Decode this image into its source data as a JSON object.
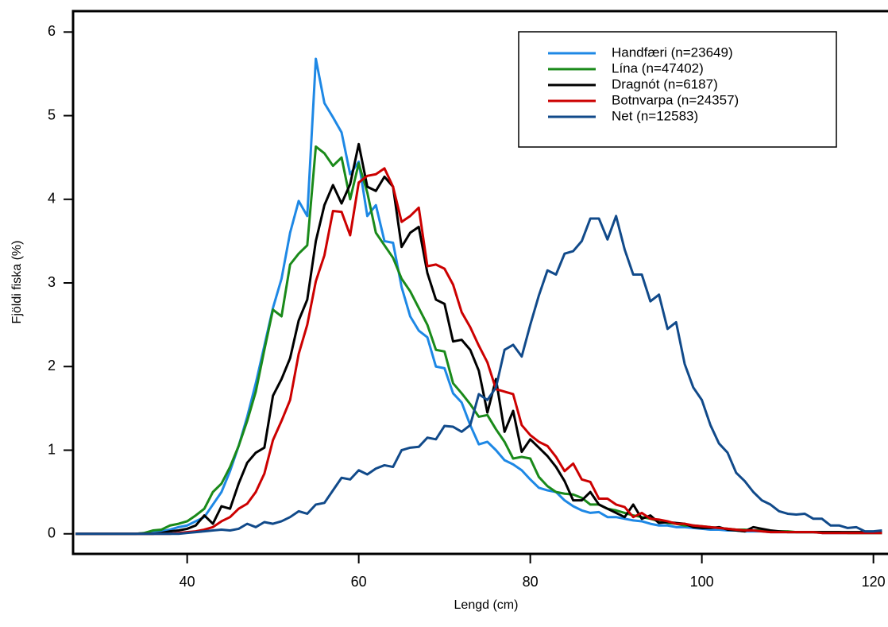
{
  "chart_data": {
    "type": "line",
    "xlabel": "Lengd (cm)",
    "ylabel": "Fjöldi fiska (%)",
    "xlim": [
      26.7,
      121.7
    ],
    "ylim": [
      -0.24,
      6.25
    ],
    "xticks": [
      40,
      60,
      80,
      100,
      120
    ],
    "yticks": [
      0,
      1,
      2,
      3,
      4,
      5,
      6
    ],
    "legend": "topright",
    "grid": false,
    "x": [
      27,
      28,
      29,
      30,
      31,
      32,
      33,
      34,
      35,
      36,
      37,
      38,
      39,
      40,
      41,
      42,
      43,
      44,
      45,
      46,
      47,
      48,
      49,
      50,
      51,
      52,
      53,
      54,
      55,
      56,
      57,
      58,
      59,
      60,
      61,
      62,
      63,
      64,
      65,
      66,
      67,
      68,
      69,
      70,
      71,
      72,
      73,
      74,
      75,
      76,
      77,
      78,
      79,
      80,
      81,
      82,
      83,
      84,
      85,
      86,
      87,
      88,
      89,
      90,
      91,
      92,
      93,
      94,
      95,
      96,
      97,
      98,
      99,
      100,
      101,
      102,
      103,
      104,
      105,
      106,
      107,
      108,
      109,
      110,
      111,
      112,
      113,
      114,
      115,
      116,
      117,
      118,
      119,
      120,
      121
    ],
    "series": [
      {
        "name": "Handfæri (n=23649)",
        "color": "#1E88E5",
        "values": [
          0,
          0,
          0,
          0,
          0,
          0,
          0,
          0,
          0.01,
          0.02,
          0.03,
          0.05,
          0.08,
          0.1,
          0.15,
          0.2,
          0.35,
          0.5,
          0.75,
          1.05,
          1.4,
          1.8,
          2.25,
          2.7,
          3.05,
          3.6,
          3.98,
          3.8,
          5.68,
          5.15,
          4.98,
          4.8,
          4.3,
          4.45,
          3.8,
          3.93,
          3.5,
          3.48,
          2.95,
          2.6,
          2.43,
          2.35,
          2.0,
          1.98,
          1.68,
          1.57,
          1.3,
          1.07,
          1.1,
          1.0,
          0.88,
          0.83,
          0.76,
          0.65,
          0.55,
          0.52,
          0.5,
          0.4,
          0.33,
          0.28,
          0.25,
          0.26,
          0.2,
          0.2,
          0.18,
          0.16,
          0.15,
          0.12,
          0.1,
          0.1,
          0.08,
          0.08,
          0.07,
          0.06,
          0.05,
          0.05,
          0.04,
          0.04,
          0.03,
          0.03,
          0.03,
          0.02,
          0.02,
          0.02,
          0.02,
          0.02,
          0.02,
          0.01,
          0.01,
          0.01,
          0.01,
          0.01,
          0.01,
          0.01,
          0.01
        ]
      },
      {
        "name": "Lína (n=47402)",
        "color": "#1A8A1A",
        "values": [
          0,
          0,
          0,
          0,
          0,
          0,
          0,
          0,
          0.01,
          0.04,
          0.05,
          0.1,
          0.12,
          0.15,
          0.22,
          0.3,
          0.5,
          0.6,
          0.8,
          1.05,
          1.35,
          1.7,
          2.2,
          2.68,
          2.6,
          3.22,
          3.35,
          3.45,
          4.63,
          4.55,
          4.4,
          4.5,
          4.0,
          4.43,
          4.08,
          3.6,
          3.45,
          3.3,
          3.05,
          2.9,
          2.7,
          2.5,
          2.2,
          2.18,
          1.8,
          1.68,
          1.55,
          1.4,
          1.42,
          1.25,
          1.1,
          0.9,
          0.92,
          0.9,
          0.68,
          0.57,
          0.5,
          0.48,
          0.47,
          0.43,
          0.35,
          0.35,
          0.3,
          0.28,
          0.25,
          0.22,
          0.2,
          0.18,
          0.15,
          0.13,
          0.12,
          0.1,
          0.1,
          0.09,
          0.08,
          0.07,
          0.06,
          0.05,
          0.05,
          0.04,
          0.04,
          0.03,
          0.03,
          0.03,
          0.02,
          0.02,
          0.02,
          0.02,
          0.02,
          0.02,
          0.01,
          0.01,
          0.01,
          0.01,
          0.01
        ]
      },
      {
        "name": "Dragnót (n=6187)",
        "color": "#000000",
        "values": [
          0,
          0,
          0,
          0,
          0,
          0,
          0,
          0,
          0,
          0,
          0.01,
          0.03,
          0.04,
          0.06,
          0.1,
          0.22,
          0.12,
          0.33,
          0.3,
          0.6,
          0.85,
          0.97,
          1.03,
          1.65,
          1.85,
          2.1,
          2.55,
          2.8,
          3.5,
          3.93,
          4.17,
          3.95,
          4.18,
          4.66,
          4.15,
          4.1,
          4.27,
          4.15,
          3.43,
          3.6,
          3.67,
          3.12,
          2.8,
          2.75,
          2.3,
          2.32,
          2.2,
          1.95,
          1.45,
          1.85,
          1.22,
          1.47,
          0.98,
          1.13,
          1.03,
          0.93,
          0.8,
          0.63,
          0.4,
          0.4,
          0.5,
          0.35,
          0.3,
          0.25,
          0.2,
          0.35,
          0.18,
          0.22,
          0.13,
          0.14,
          0.13,
          0.12,
          0.08,
          0.07,
          0.07,
          0.08,
          0.05,
          0.04,
          0.03,
          0.08,
          0.06,
          0.04,
          0.03,
          0.02,
          0.02,
          0.02,
          0.02,
          0.02,
          0.02,
          0.02,
          0.02,
          0.02,
          0.02,
          0.02,
          0.02
        ]
      },
      {
        "name": "Botnvarpa (n=24357)",
        "color": "#CC0000",
        "values": [
          0,
          0,
          0,
          0,
          0,
          0,
          0,
          0,
          0,
          0,
          0,
          0,
          0.01,
          0.02,
          0.03,
          0.05,
          0.08,
          0.15,
          0.2,
          0.3,
          0.36,
          0.5,
          0.72,
          1.12,
          1.35,
          1.6,
          2.15,
          2.5,
          3.02,
          3.33,
          3.86,
          3.85,
          3.57,
          4.2,
          4.28,
          4.3,
          4.37,
          4.15,
          3.73,
          3.8,
          3.9,
          3.2,
          3.22,
          3.17,
          2.98,
          2.65,
          2.47,
          2.25,
          2.05,
          1.73,
          1.7,
          1.67,
          1.3,
          1.18,
          1.1,
          1.05,
          0.92,
          0.75,
          0.84,
          0.65,
          0.62,
          0.42,
          0.42,
          0.35,
          0.32,
          0.2,
          0.25,
          0.18,
          0.17,
          0.15,
          0.12,
          0.12,
          0.1,
          0.09,
          0.08,
          0.07,
          0.06,
          0.05,
          0.04,
          0.04,
          0.03,
          0.02,
          0.02,
          0.02,
          0.02,
          0.02,
          0.02,
          0.01,
          0.01,
          0.01,
          0.01,
          0.01,
          0.01,
          0.01,
          0.01
        ]
      },
      {
        "name": "Net (n=12583)",
        "color": "#114A8A",
        "values": [
          0,
          0,
          0,
          0,
          0,
          0,
          0,
          0,
          0,
          0,
          0,
          0,
          0,
          0.01,
          0.02,
          0.03,
          0.04,
          0.05,
          0.04,
          0.06,
          0.12,
          0.08,
          0.14,
          0.12,
          0.15,
          0.2,
          0.27,
          0.24,
          0.35,
          0.37,
          0.52,
          0.67,
          0.65,
          0.76,
          0.71,
          0.78,
          0.82,
          0.8,
          1.0,
          1.03,
          1.04,
          1.15,
          1.13,
          1.29,
          1.28,
          1.22,
          1.3,
          1.67,
          1.6,
          1.75,
          2.2,
          2.26,
          2.12,
          2.5,
          2.85,
          3.15,
          3.1,
          3.35,
          3.38,
          3.5,
          3.77,
          3.77,
          3.52,
          3.8,
          3.4,
          3.1,
          3.1,
          2.78,
          2.86,
          2.45,
          2.53,
          2.03,
          1.75,
          1.6,
          1.3,
          1.08,
          0.97,
          0.73,
          0.63,
          0.5,
          0.4,
          0.35,
          0.27,
          0.24,
          0.23,
          0.24,
          0.18,
          0.18,
          0.1,
          0.1,
          0.07,
          0.08,
          0.03,
          0.03,
          0.04
        ]
      }
    ]
  }
}
